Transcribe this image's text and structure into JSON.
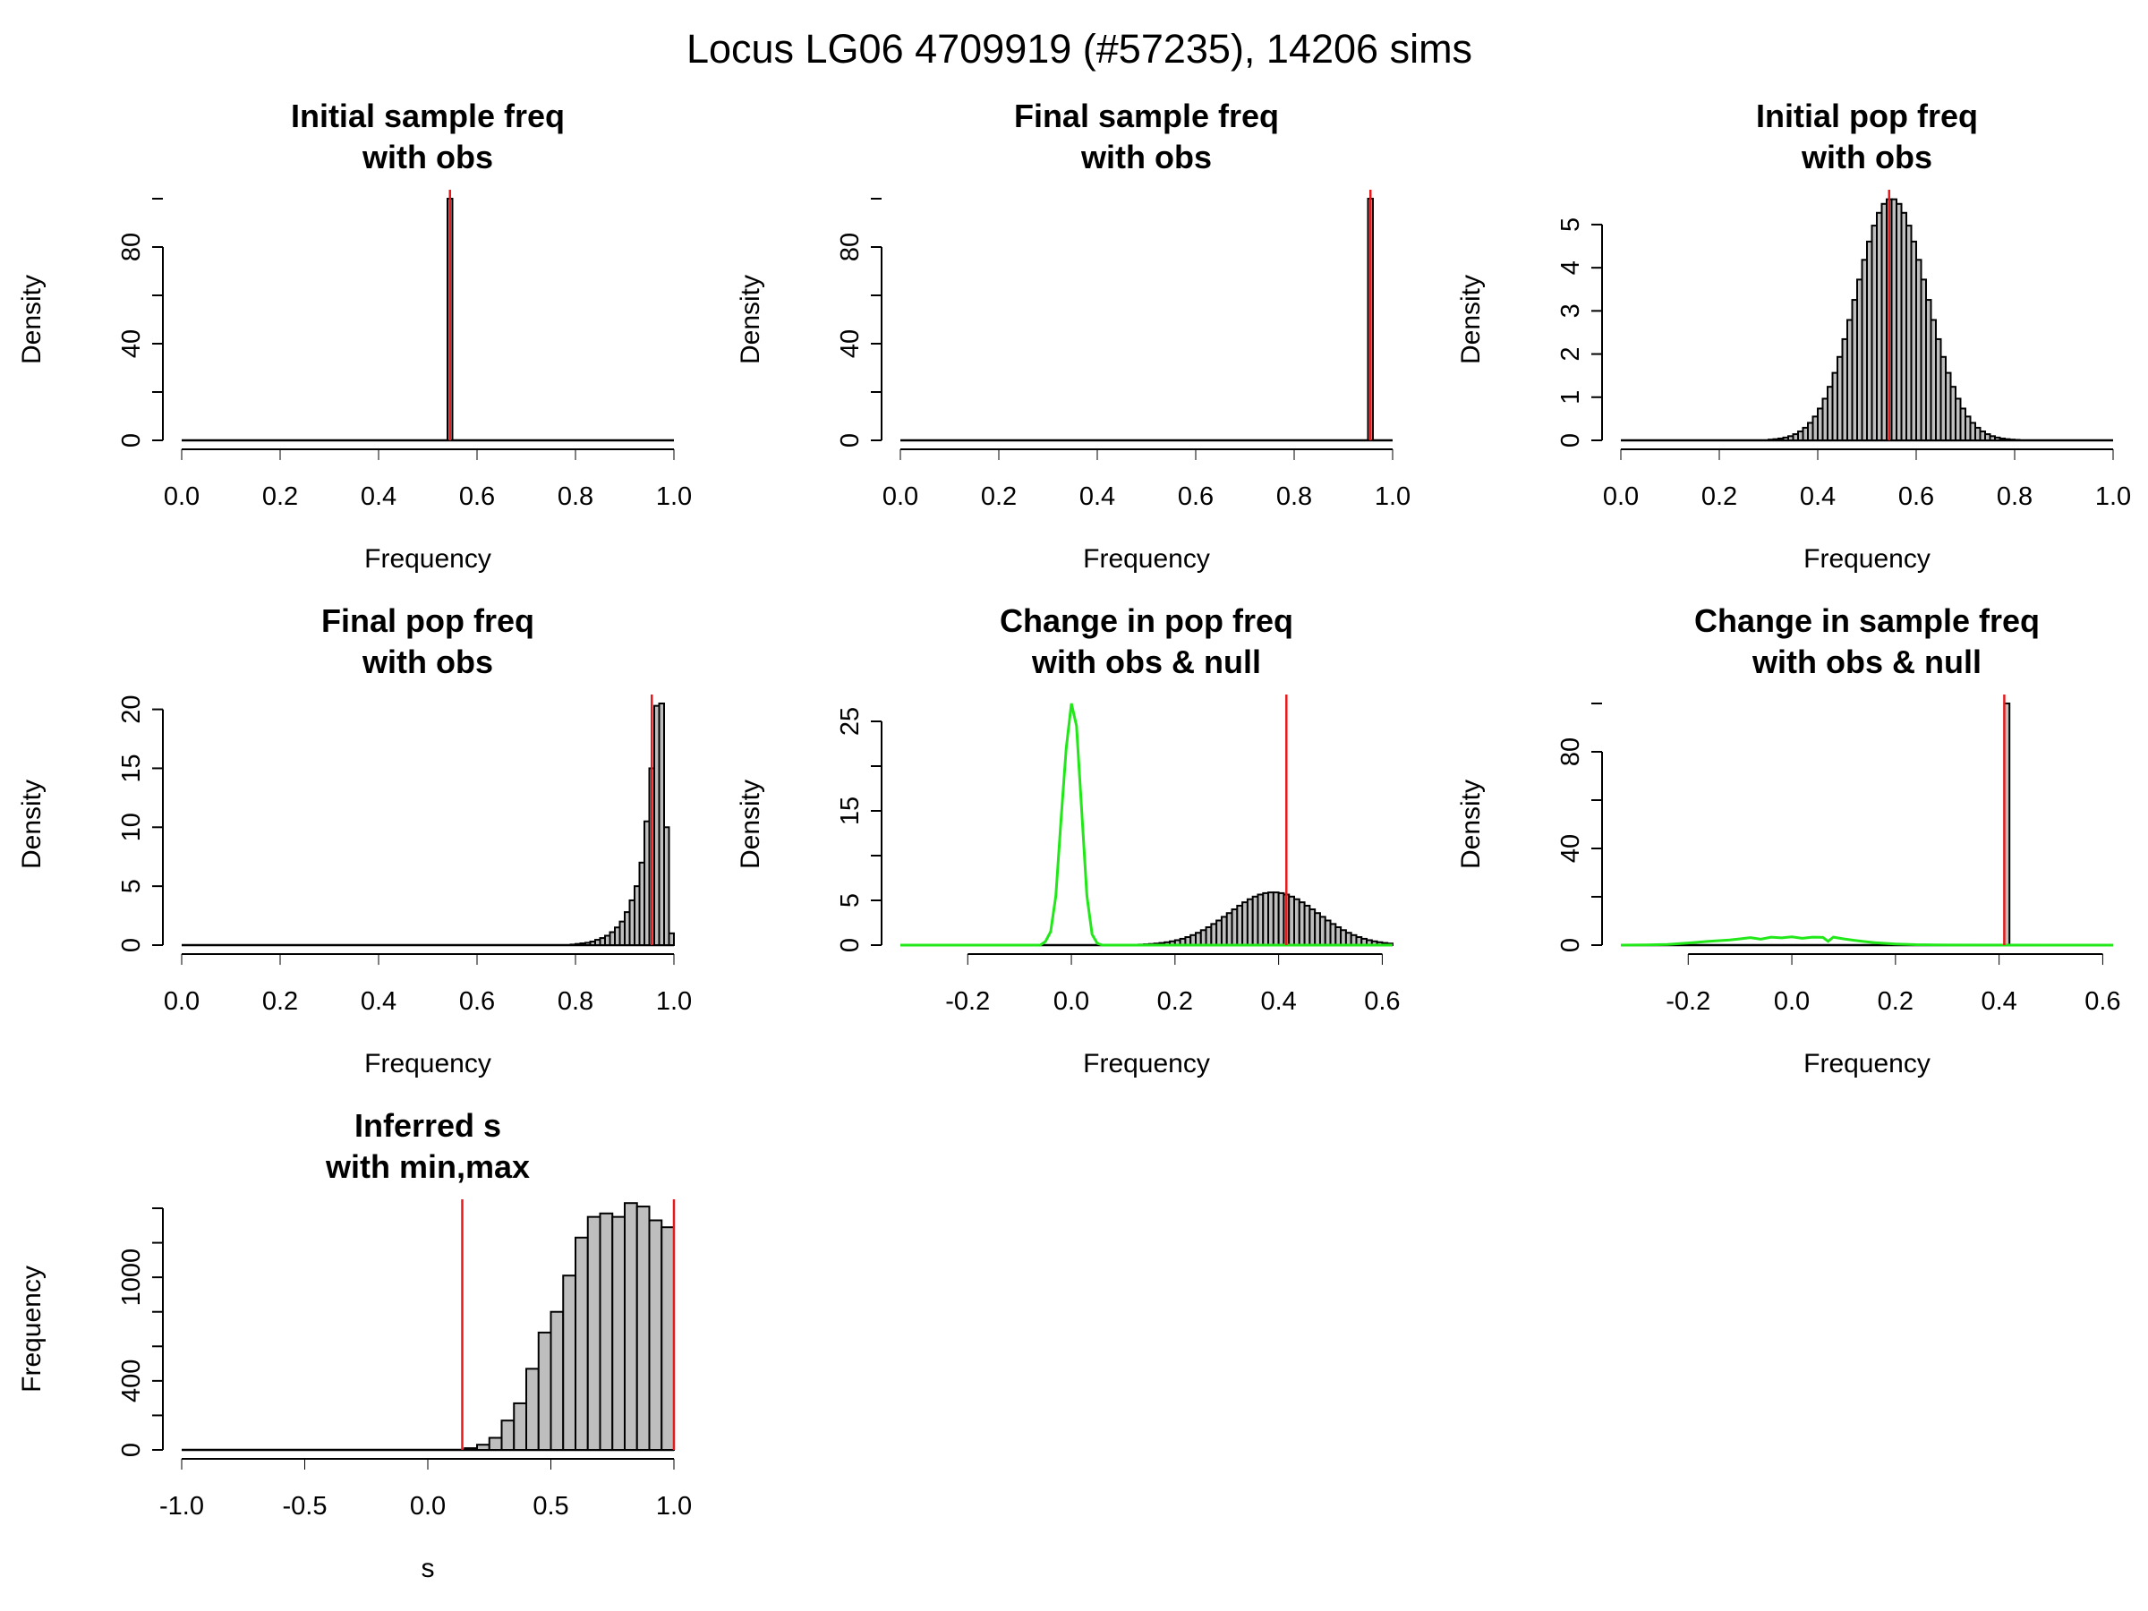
{
  "figure": {
    "title": "Locus LG06 4709919 (#57235), 14206 sims"
  },
  "chart_data": [
    {
      "type": "bar",
      "title_lines": [
        "Initial sample freq",
        "with obs"
      ],
      "xlabel": "Frequency",
      "ylabel": "Density",
      "xlim": [
        0,
        1
      ],
      "ylim": [
        0,
        100
      ],
      "xticks": [
        "0.0",
        "0.2",
        "0.4",
        "0.6",
        "0.8",
        "1.0"
      ],
      "yticks": [
        "0",
        "40",
        "80"
      ],
      "bin_width": 0.01,
      "bins": [
        [
          0.54,
          100
        ]
      ],
      "obs_lines": [
        0.545
      ],
      "obs_color": "#e8191b"
    },
    {
      "type": "bar",
      "title_lines": [
        "Final sample freq",
        "with obs"
      ],
      "xlabel": "Frequency",
      "ylabel": "Density",
      "xlim": [
        0,
        1
      ],
      "ylim": [
        0,
        100
      ],
      "xticks": [
        "0.0",
        "0.2",
        "0.4",
        "0.6",
        "0.8",
        "1.0"
      ],
      "yticks": [
        "0",
        "40",
        "80"
      ],
      "bin_width": 0.01,
      "bins": [
        [
          0.95,
          100
        ]
      ],
      "obs_lines": [
        0.955
      ],
      "obs_color": "#e8191b"
    },
    {
      "type": "bar",
      "title_lines": [
        "Initial pop freq",
        "with obs"
      ],
      "xlabel": "Frequency",
      "ylabel": "Density",
      "xlim": [
        0,
        1
      ],
      "ylim": [
        0,
        5.6
      ],
      "xticks": [
        "0.0",
        "0.2",
        "0.4",
        "0.6",
        "0.8",
        "1.0"
      ],
      "yticks": [
        "0",
        "1",
        "2",
        "3",
        "4",
        "5"
      ],
      "bin_width": 0.01,
      "normal": {
        "mean": 0.55,
        "sd": 0.072,
        "peak": 5.6,
        "from": 0.3,
        "to": 0.81
      },
      "obs_lines": [
        0.545
      ],
      "obs_color": "#e8191b"
    },
    {
      "type": "bar",
      "title_lines": [
        "Final pop freq",
        "with obs"
      ],
      "xlabel": "Frequency",
      "ylabel": "Density",
      "xlim": [
        0,
        1
      ],
      "ylim": [
        0,
        20.5
      ],
      "xticks": [
        "0.0",
        "0.2",
        "0.4",
        "0.6",
        "0.8",
        "1.0"
      ],
      "yticks": [
        "0",
        "5",
        "10",
        "15",
        "20"
      ],
      "bin_width": 0.01,
      "bins": [
        [
          0.79,
          0.05
        ],
        [
          0.8,
          0.1
        ],
        [
          0.81,
          0.15
        ],
        [
          0.82,
          0.2
        ],
        [
          0.83,
          0.3
        ],
        [
          0.84,
          0.45
        ],
        [
          0.85,
          0.6
        ],
        [
          0.86,
          0.8
        ],
        [
          0.87,
          1.1
        ],
        [
          0.88,
          1.5
        ],
        [
          0.89,
          2.0
        ],
        [
          0.9,
          2.8
        ],
        [
          0.91,
          3.8
        ],
        [
          0.92,
          5.0
        ],
        [
          0.93,
          7.0
        ],
        [
          0.94,
          10.5
        ],
        [
          0.95,
          15.0
        ],
        [
          0.96,
          20.3
        ],
        [
          0.97,
          20.5
        ],
        [
          0.98,
          10.0
        ],
        [
          0.99,
          1.0
        ]
      ],
      "obs_lines": [
        0.955
      ],
      "obs_color": "#e8191b"
    },
    {
      "type": "bar",
      "title_lines": [
        "Change in pop freq",
        "with obs & null"
      ],
      "xlabel": "Frequency",
      "ylabel": "Density",
      "xlim": [
        -0.33,
        0.62
      ],
      "ylim": [
        0,
        27
      ],
      "xticks": [
        "-0.2",
        "0.0",
        "0.2",
        "0.4",
        "0.6"
      ],
      "yticks": [
        "0",
        "5",
        "15",
        "25"
      ],
      "bin_width": 0.01,
      "normal": {
        "mean": 0.39,
        "sd": 0.085,
        "peak": 5.9,
        "from": 0.13,
        "to": 0.62
      },
      "null_curve": {
        "x": [
          -0.33,
          -0.06,
          -0.05,
          -0.04,
          -0.03,
          -0.02,
          -0.01,
          0.0,
          0.01,
          0.02,
          0.03,
          0.04,
          0.05,
          0.06,
          0.62
        ],
        "y": [
          0,
          0,
          0.4,
          1.5,
          5.5,
          14,
          22,
          27,
          24.5,
          15,
          5.5,
          1.2,
          0.2,
          0,
          0
        ],
        "color": "#22e81a"
      },
      "obs_lines": [
        0.415
      ],
      "obs_color": "#e8191b"
    },
    {
      "type": "bar",
      "title_lines": [
        "Change in sample freq",
        "with obs & null"
      ],
      "xlabel": "Frequency",
      "ylabel": "Density",
      "xlim": [
        -0.33,
        0.62
      ],
      "ylim": [
        0,
        100
      ],
      "xticks": [
        "-0.2",
        "0.0",
        "0.2",
        "0.4",
        "0.6"
      ],
      "yticks": [
        "0",
        "40",
        "80"
      ],
      "bin_width": 0.01,
      "bins": [
        [
          0.41,
          100
        ]
      ],
      "null_curve": {
        "x": [
          -0.33,
          -0.28,
          -0.24,
          -0.2,
          -0.16,
          -0.12,
          -0.1,
          -0.08,
          -0.06,
          -0.04,
          -0.02,
          0.0,
          0.02,
          0.04,
          0.06,
          0.07,
          0.08,
          0.1,
          0.12,
          0.14,
          0.16,
          0.2,
          0.24,
          0.3,
          0.62
        ],
        "y": [
          0,
          0.1,
          0.3,
          0.9,
          1.6,
          2.1,
          2.6,
          3.1,
          2.5,
          3.3,
          3.0,
          3.4,
          2.8,
          3.3,
          3.2,
          1.6,
          3.3,
          2.6,
          2.0,
          1.5,
          1.0,
          0.5,
          0.2,
          0.05,
          0
        ],
        "color": "#22e81a"
      },
      "obs_lines": [
        0.41
      ],
      "obs_color": "#e8191b"
    },
    {
      "type": "bar",
      "title_lines": [
        "Inferred s",
        "with min,max"
      ],
      "xlabel": "s",
      "ylabel": "Frequency",
      "xlim": [
        -1,
        1
      ],
      "ylim": [
        0,
        1400
      ],
      "xticks": [
        "-1.0",
        "-0.5",
        "0.0",
        "0.5",
        "1.0"
      ],
      "yticks": [
        "0",
        "400",
        "1000"
      ],
      "bin_width": 0.05,
      "bins": [
        [
          0.15,
          10
        ],
        [
          0.2,
          30
        ],
        [
          0.25,
          70
        ],
        [
          0.3,
          170
        ],
        [
          0.35,
          270
        ],
        [
          0.4,
          470
        ],
        [
          0.45,
          680
        ],
        [
          0.5,
          800
        ],
        [
          0.55,
          1010
        ],
        [
          0.6,
          1230
        ],
        [
          0.65,
          1350
        ],
        [
          0.7,
          1370
        ],
        [
          0.75,
          1350
        ],
        [
          0.8,
          1430
        ],
        [
          0.85,
          1410
        ],
        [
          0.9,
          1330
        ],
        [
          0.95,
          1290
        ]
      ],
      "obs_lines": [
        0.14,
        1.0
      ],
      "obs_color": "#e8191b"
    }
  ]
}
